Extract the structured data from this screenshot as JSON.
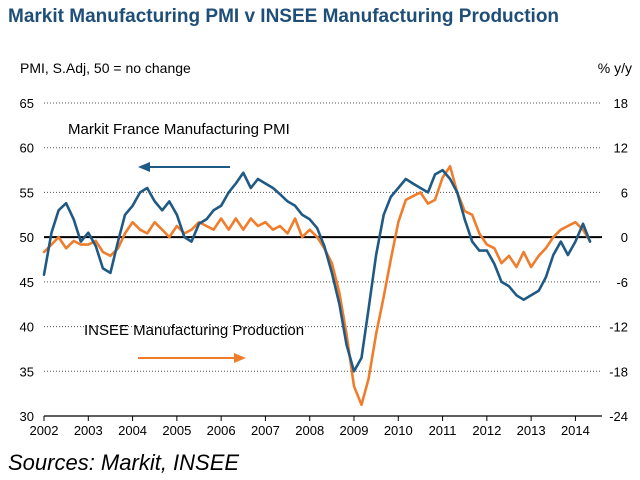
{
  "chart_data": {
    "type": "line",
    "title": "Markit Manufacturing PMI v INSEE Manufacturing Production",
    "ylabel_left": "PMI, S.Adj, 50 = no change",
    "ylabel_right": "% y/y",
    "source": "Sources: Markit, INSEE",
    "x_ticks": [
      "2002",
      "2003",
      "2004",
      "2005",
      "2006",
      "2007",
      "2008",
      "2009",
      "2010",
      "2011",
      "2012",
      "2013",
      "2014"
    ],
    "xlim": [
      2002.0,
      2014.6
    ],
    "left_axis": {
      "ylim": [
        30,
        65
      ],
      "ticks": [
        "30",
        "35",
        "40",
        "45",
        "50",
        "55",
        "60",
        "65"
      ]
    },
    "right_axis": {
      "ylim": [
        -24,
        18
      ],
      "ticks": [
        "-24",
        "-18",
        "-12",
        "-6",
        "0",
        "6",
        "12",
        "18"
      ]
    },
    "reference_line": {
      "axis": "left",
      "value": 50
    },
    "series": [
      {
        "name": "Markit France Manufacturing PMI",
        "axis": "left",
        "color": "#1f5a85",
        "annotation_arrow": "left",
        "x": [
          2002.0,
          2002.17,
          2002.33,
          2002.5,
          2002.67,
          2002.83,
          2003.0,
          2003.17,
          2003.33,
          2003.5,
          2003.67,
          2003.83,
          2004.0,
          2004.17,
          2004.33,
          2004.5,
          2004.67,
          2004.83,
          2005.0,
          2005.17,
          2005.33,
          2005.5,
          2005.67,
          2005.83,
          2006.0,
          2006.17,
          2006.33,
          2006.5,
          2006.67,
          2006.83,
          2007.0,
          2007.17,
          2007.33,
          2007.5,
          2007.67,
          2007.83,
          2008.0,
          2008.17,
          2008.33,
          2008.5,
          2008.67,
          2008.83,
          2009.0,
          2009.17,
          2009.33,
          2009.5,
          2009.67,
          2009.83,
          2010.0,
          2010.17,
          2010.33,
          2010.5,
          2010.67,
          2010.83,
          2011.0,
          2011.17,
          2011.33,
          2011.5,
          2011.67,
          2011.83,
          2012.0,
          2012.17,
          2012.33,
          2012.5,
          2012.67,
          2012.83,
          2013.0,
          2013.17,
          2013.33,
          2013.5,
          2013.67,
          2013.83,
          2014.0,
          2014.17,
          2014.33
        ],
        "values": [
          45.8,
          50.5,
          53.0,
          53.8,
          52.0,
          49.5,
          50.5,
          49.0,
          46.5,
          46.0,
          49.5,
          52.5,
          53.5,
          55.0,
          55.5,
          54.0,
          53.0,
          54.0,
          52.5,
          50.0,
          49.5,
          51.5,
          52.0,
          53.0,
          53.5,
          55.0,
          56.0,
          57.2,
          55.5,
          56.5,
          56.0,
          55.5,
          54.8,
          54.0,
          53.5,
          52.5,
          52.0,
          51.0,
          49.0,
          46.0,
          42.5,
          38.0,
          35.0,
          36.5,
          42.0,
          48.0,
          52.5,
          54.5,
          55.5,
          56.5,
          56.0,
          55.5,
          55.0,
          57.0,
          57.5,
          56.5,
          55.0,
          52.0,
          49.5,
          48.5,
          48.5,
          47.0,
          45.0,
          44.5,
          43.5,
          43.0,
          43.5,
          44.0,
          45.5,
          48.0,
          49.5,
          48.0,
          49.5,
          51.5,
          49.5
        ]
      },
      {
        "name": "INSEE Manufacturing Production",
        "axis": "right",
        "color": "#f07d2c",
        "annotation_arrow": "right",
        "x": [
          2002.0,
          2002.17,
          2002.33,
          2002.5,
          2002.67,
          2002.83,
          2003.0,
          2003.17,
          2003.33,
          2003.5,
          2003.67,
          2003.83,
          2004.0,
          2004.17,
          2004.33,
          2004.5,
          2004.67,
          2004.83,
          2005.0,
          2005.17,
          2005.33,
          2005.5,
          2005.67,
          2005.83,
          2006.0,
          2006.17,
          2006.33,
          2006.5,
          2006.67,
          2006.83,
          2007.0,
          2007.17,
          2007.33,
          2007.5,
          2007.67,
          2007.83,
          2008.0,
          2008.17,
          2008.33,
          2008.5,
          2008.67,
          2008.83,
          2009.0,
          2009.17,
          2009.33,
          2009.5,
          2009.67,
          2009.83,
          2010.0,
          2010.17,
          2010.33,
          2010.5,
          2010.67,
          2010.83,
          2011.0,
          2011.17,
          2011.33,
          2011.5,
          2011.67,
          2011.83,
          2012.0,
          2012.17,
          2012.33,
          2012.5,
          2012.67,
          2012.83,
          2013.0,
          2013.17,
          2013.33,
          2013.5,
          2013.67,
          2013.83,
          2014.0,
          2014.17,
          2014.33
        ],
        "values": [
          -2.0,
          -1.0,
          0.0,
          -1.5,
          -0.5,
          -1.0,
          -1.0,
          -0.5,
          -2.0,
          -2.5,
          -1.5,
          0.5,
          2.0,
          1.0,
          0.5,
          2.0,
          1.0,
          0.0,
          1.5,
          0.5,
          1.0,
          2.0,
          1.5,
          1.0,
          2.5,
          1.0,
          2.5,
          1.0,
          2.5,
          1.5,
          2.0,
          1.0,
          1.5,
          0.5,
          2.5,
          0.0,
          1.0,
          0.0,
          -1.5,
          -3.5,
          -7.5,
          -13.0,
          -20.0,
          -22.5,
          -19.0,
          -13.0,
          -8.0,
          -3.0,
          2.0,
          5.0,
          5.5,
          6.0,
          4.5,
          5.0,
          8.0,
          9.5,
          6.0,
          3.5,
          3.0,
          0.5,
          -1.0,
          -1.5,
          -3.5,
          -2.5,
          -4.0,
          -2.0,
          -4.0,
          -2.5,
          -1.5,
          0.0,
          1.0,
          1.5,
          2.0,
          1.0,
          -0.5
        ]
      }
    ]
  }
}
